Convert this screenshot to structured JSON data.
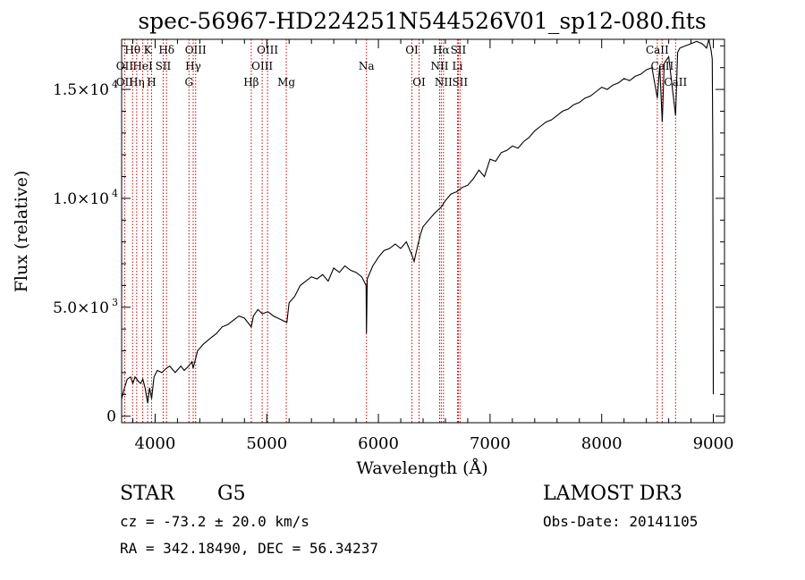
{
  "chart_data": {
    "type": "line",
    "title": "spec-56967-HD224251N544526V01_sp12-080.fits",
    "xlabel": "Wavelength (Å)",
    "ylabel": "Flux (relative)",
    "xlim": [
      3700,
      9100
    ],
    "ylim": [
      -300,
      17300
    ],
    "x_ticks": [
      {
        "value": 4000,
        "label": "4000"
      },
      {
        "value": 5000,
        "label": "5000"
      },
      {
        "value": 6000,
        "label": "6000"
      },
      {
        "value": 7000,
        "label": "7000"
      },
      {
        "value": 8000,
        "label": "8000"
      },
      {
        "value": 9000,
        "label": "9000"
      }
    ],
    "y_ticks": [
      {
        "value": 0,
        "label": "0",
        "exp": ""
      },
      {
        "value": 5000,
        "label": "5.0×10",
        "exp": "3"
      },
      {
        "value": 10000,
        "label": "1.0×10",
        "exp": "4"
      },
      {
        "value": 15000,
        "label": "1.5×10",
        "exp": "4"
      }
    ],
    "series": [
      {
        "name": "spectrum",
        "x": [
          3700,
          3720,
          3750,
          3780,
          3800,
          3820,
          3850,
          3870,
          3890,
          3910,
          3933,
          3950,
          3968,
          3990,
          4020,
          4060,
          4101,
          4130,
          4180,
          4230,
          4260,
          4300,
          4330,
          4340,
          4380,
          4430,
          4500,
          4550,
          4600,
          4650,
          4700,
          4750,
          4800,
          4861,
          4880,
          4920,
          4960,
          5010,
          5060,
          5100,
          5140,
          5180,
          5200,
          5250,
          5300,
          5350,
          5400,
          5450,
          5500,
          5550,
          5600,
          5650,
          5700,
          5750,
          5800,
          5850,
          5890,
          5893,
          5900,
          5950,
          6000,
          6050,
          6100,
          6150,
          6200,
          6250,
          6300,
          6320,
          6350,
          6380,
          6400,
          6450,
          6500,
          6563,
          6600,
          6650,
          6700,
          6750,
          6800,
          6850,
          6900,
          6950,
          7000,
          7050,
          7100,
          7150,
          7200,
          7250,
          7300,
          7350,
          7400,
          7450,
          7500,
          7550,
          7600,
          7650,
          7700,
          7750,
          7800,
          7850,
          7900,
          7950,
          8000,
          8050,
          8100,
          8150,
          8200,
          8250,
          8300,
          8350,
          8400,
          8450,
          8498,
          8520,
          8542,
          8560,
          8600,
          8662,
          8680,
          8700,
          8750,
          8800,
          8850,
          8900,
          8940,
          8960,
          8980,
          8990,
          8995,
          9000
        ],
        "y": [
          800,
          1200,
          1700,
          1800,
          1500,
          1800,
          1600,
          1500,
          1700,
          1300,
          600,
          1300,
          800,
          1800,
          2100,
          2000,
          2200,
          2300,
          2000,
          2300,
          2100,
          2300,
          2500,
          2200,
          3000,
          3300,
          3600,
          3800,
          4100,
          4200,
          4400,
          4600,
          4500,
          4100,
          4600,
          4900,
          4700,
          4800,
          4600,
          4500,
          4400,
          4300,
          5200,
          5500,
          6000,
          6200,
          6400,
          6300,
          6500,
          6200,
          6800,
          6600,
          6900,
          6700,
          6600,
          6400,
          6000,
          3800,
          6300,
          6900,
          7300,
          7600,
          7700,
          7900,
          7700,
          8000,
          7400,
          7100,
          7800,
          8400,
          8700,
          9000,
          9300,
          9600,
          9900,
          10200,
          10300,
          10500,
          10600,
          10900,
          11300,
          11000,
          11800,
          11700,
          12100,
          12200,
          12400,
          12300,
          12600,
          12800,
          13100,
          13300,
          13500,
          13600,
          13800,
          14000,
          14100,
          14300,
          14400,
          14600,
          14700,
          14900,
          15100,
          15000,
          15200,
          15300,
          15500,
          15400,
          15600,
          15700,
          15900,
          16000,
          14600,
          16100,
          13500,
          16200,
          16500,
          13800,
          16700,
          16900,
          17000,
          17100,
          17200,
          17100,
          16900,
          17300,
          16800,
          16400,
          12500,
          1000
        ]
      }
    ],
    "line_labels": [
      {
        "wavelength": 3798,
        "label": "Hθ",
        "row": 0
      },
      {
        "wavelength": 3727,
        "label": "OII",
        "row": 1
      },
      {
        "wavelength": 3727,
        "label": "OII",
        "row": 2
      },
      {
        "wavelength": 3835,
        "label": "Hη",
        "row": 2
      },
      {
        "wavelength": 3889,
        "label": "HeI",
        "row": 1
      },
      {
        "wavelength": 3933,
        "label": "K",
        "row": 0
      },
      {
        "wavelength": 3968,
        "label": "H",
        "row": 2
      },
      {
        "wavelength": 4072,
        "label": "SII",
        "row": 1
      },
      {
        "wavelength": 4102,
        "label": "Hδ",
        "row": 0
      },
      {
        "wavelength": 4303,
        "label": "G",
        "row": 2
      },
      {
        "wavelength": 4341,
        "label": "Hγ",
        "row": 1
      },
      {
        "wavelength": 4363,
        "label": "OIII",
        "row": 0
      },
      {
        "wavelength": 4861,
        "label": "Hβ",
        "row": 2
      },
      {
        "wavelength": 4959,
        "label": "OIII",
        "row": 1
      },
      {
        "wavelength": 5007,
        "label": "OIII",
        "row": 0
      },
      {
        "wavelength": 5175,
        "label": "Mg",
        "row": 2
      },
      {
        "wavelength": 5893,
        "label": "Na",
        "row": 1
      },
      {
        "wavelength": 6300,
        "label": "OI",
        "row": 0
      },
      {
        "wavelength": 6364,
        "label": "OI",
        "row": 2
      },
      {
        "wavelength": 6548,
        "label": "NII",
        "row": 1
      },
      {
        "wavelength": 6563,
        "label": "Hα",
        "row": 0
      },
      {
        "wavelength": 6583,
        "label": "NII",
        "row": 2
      },
      {
        "wavelength": 6708,
        "label": "Li",
        "row": 1
      },
      {
        "wavelength": 6716,
        "label": "SII",
        "row": 0
      },
      {
        "wavelength": 6731,
        "label": "SII",
        "row": 2
      },
      {
        "wavelength": 8498,
        "label": "CaII",
        "row": 0
      },
      {
        "wavelength": 8542,
        "label": "CaII",
        "row": 1
      },
      {
        "wavelength": 8662,
        "label": "CaII",
        "row": 2
      }
    ],
    "grid": false,
    "legend": "none"
  },
  "info": {
    "class": "STAR",
    "subclass": "G5",
    "survey": "LAMOST DR3",
    "cz": "cz = -73.2 ± 20.0 km/s",
    "obs_date": "Obs-Date: 20141105",
    "coords": "RA = 342.18490, DEC =  56.34237"
  },
  "colors": {
    "line_marker": "#cc0000",
    "spectrum": "#000000"
  }
}
